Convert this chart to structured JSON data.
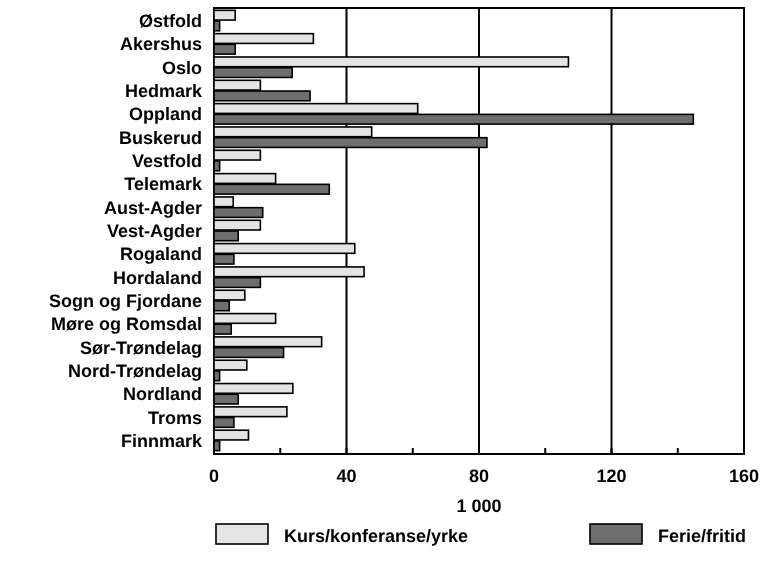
{
  "chart_data": {
    "type": "bar",
    "orientation": "horizontal",
    "xlabel": "1 000",
    "categories": [
      "Østfold",
      "Akershus",
      "Oslo",
      "Hedmark",
      "Oppland",
      "Buskerud",
      "Vestfold",
      "Telemark",
      "Aust-Agder",
      "Vest-Agder",
      "Rogaland",
      "Hordaland",
      "Sogn og Fjordane",
      "Møre og Romsdal",
      "Sør-Trøndelag",
      "Nord-Trøndelag",
      "Nordland",
      "Troms",
      "Finnmark"
    ],
    "series": [
      {
        "name": "Kurs/konferanse/yrke",
        "color": "#e4e4e4",
        "values": [
          6.4,
          30,
          107,
          14,
          61.5,
          47.6,
          14,
          18.6,
          5.8,
          14,
          42.5,
          45.3,
          9.3,
          18.6,
          32.5,
          9.9,
          23.8,
          22,
          10.4
        ]
      },
      {
        "name": "Ferie/fritid",
        "color": "#6e6e6e",
        "values": [
          1.7,
          6.4,
          23.6,
          29,
          144.7,
          82.4,
          1.7,
          34.8,
          14.7,
          7.3,
          6,
          14,
          4.6,
          5.2,
          21,
          1.7,
          7.3,
          6,
          1.7
        ]
      }
    ],
    "xlim": [
      0,
      160
    ],
    "xticks": [
      0,
      {
        "value": 20,
        "label": null
      },
      40,
      {
        "value": 60,
        "label": null
      },
      {
        "value": 80,
        "label": "80"
      },
      {
        "value": 100,
        "label": null
      },
      120,
      {
        "value": 140,
        "label": null
      },
      160
    ],
    "grid": "x",
    "legend": "bottom"
  }
}
